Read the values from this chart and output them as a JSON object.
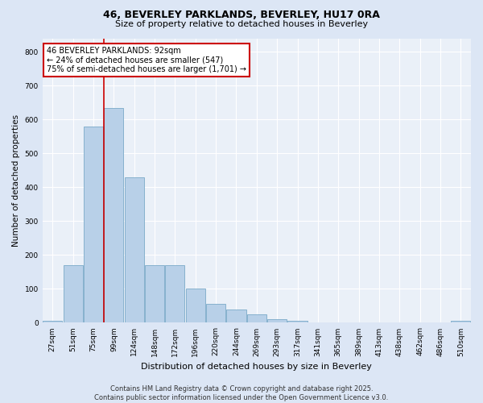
{
  "title1": "46, BEVERLEY PARKLANDS, BEVERLEY, HU17 0RA",
  "title2": "Size of property relative to detached houses in Beverley",
  "xlabel": "Distribution of detached houses by size in Beverley",
  "ylabel": "Number of detached properties",
  "categories": [
    "27sqm",
    "51sqm",
    "75sqm",
    "99sqm",
    "124sqm",
    "148sqm",
    "172sqm",
    "196sqm",
    "220sqm",
    "244sqm",
    "269sqm",
    "293sqm",
    "317sqm",
    "341sqm",
    "365sqm",
    "389sqm",
    "413sqm",
    "438sqm",
    "462sqm",
    "486sqm",
    "510sqm"
  ],
  "values": [
    5,
    170,
    580,
    635,
    430,
    170,
    170,
    100,
    55,
    40,
    25,
    10,
    5,
    0,
    0,
    0,
    0,
    0,
    0,
    0,
    5
  ],
  "bar_color": "#b8d0e8",
  "bar_edge_color": "#7aaac8",
  "vline_color": "#cc0000",
  "vline_x_index": 2.5,
  "annotation_text": "46 BEVERLEY PARKLANDS: 92sqm\n← 24% of detached houses are smaller (547)\n75% of semi-detached houses are larger (1,701) →",
  "annotation_box_facecolor": "#ffffff",
  "annotation_box_edgecolor": "#cc0000",
  "ylim": [
    0,
    840
  ],
  "yticks": [
    0,
    100,
    200,
    300,
    400,
    500,
    600,
    700,
    800
  ],
  "footer": "Contains HM Land Registry data © Crown copyright and database right 2025.\nContains public sector information licensed under the Open Government Licence v3.0.",
  "bg_color": "#dce6f5",
  "plot_bg_color": "#eaf0f8",
  "grid_color": "#ffffff",
  "title1_fontsize": 9,
  "title2_fontsize": 8,
  "xlabel_fontsize": 8,
  "ylabel_fontsize": 7.5,
  "tick_fontsize": 6.5,
  "footer_fontsize": 6,
  "annot_fontsize": 7
}
